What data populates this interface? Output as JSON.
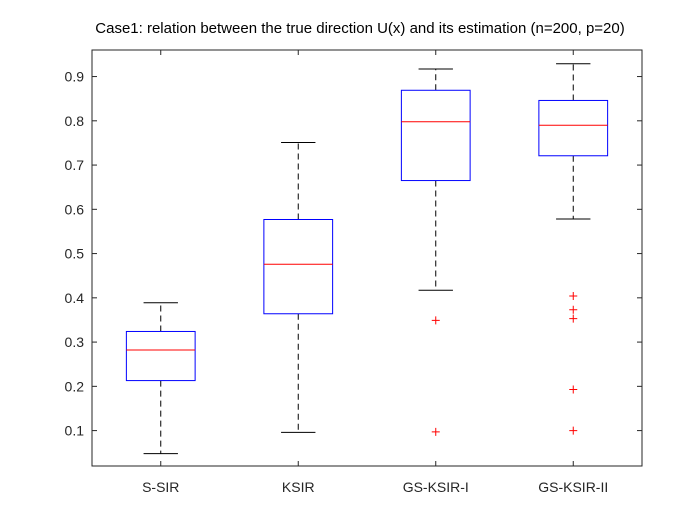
{
  "chart_data": {
    "type": "box",
    "title": "Case1: relation between the true direction U(x) and its estimation (n=200, p=20)",
    "xlabel": "",
    "ylabel": "",
    "ylim": [
      0.02,
      0.96
    ],
    "yticks": [
      0.1,
      0.2,
      0.3,
      0.4,
      0.5,
      0.6,
      0.7,
      0.8,
      0.9
    ],
    "categories": [
      "S-SIR",
      "KSIR",
      "GS-KSIR-I",
      "GS-KSIR-II"
    ],
    "boxes": [
      {
        "name": "S-SIR",
        "whisker_low": 0.048,
        "q1": 0.213,
        "median": 0.282,
        "q3": 0.324,
        "whisker_high": 0.389,
        "outliers": []
      },
      {
        "name": "KSIR",
        "whisker_low": 0.096,
        "q1": 0.364,
        "median": 0.476,
        "q3": 0.577,
        "whisker_high": 0.751,
        "outliers": []
      },
      {
        "name": "GS-KSIR-I",
        "whisker_low": 0.417,
        "q1": 0.665,
        "median": 0.798,
        "q3": 0.869,
        "whisker_high": 0.917,
        "outliers": [
          0.349,
          0.097
        ]
      },
      {
        "name": "GS-KSIR-II",
        "whisker_low": 0.578,
        "q1": 0.721,
        "median": 0.79,
        "q3": 0.846,
        "whisker_high": 0.929,
        "outliers": [
          0.404,
          0.373,
          0.353,
          0.193,
          0.1
        ]
      }
    ],
    "colors": {
      "box": "#0000ff",
      "median": "#ff0000",
      "whisker": "#000000",
      "outlier": "#ff0000",
      "axis": "#262626"
    }
  }
}
